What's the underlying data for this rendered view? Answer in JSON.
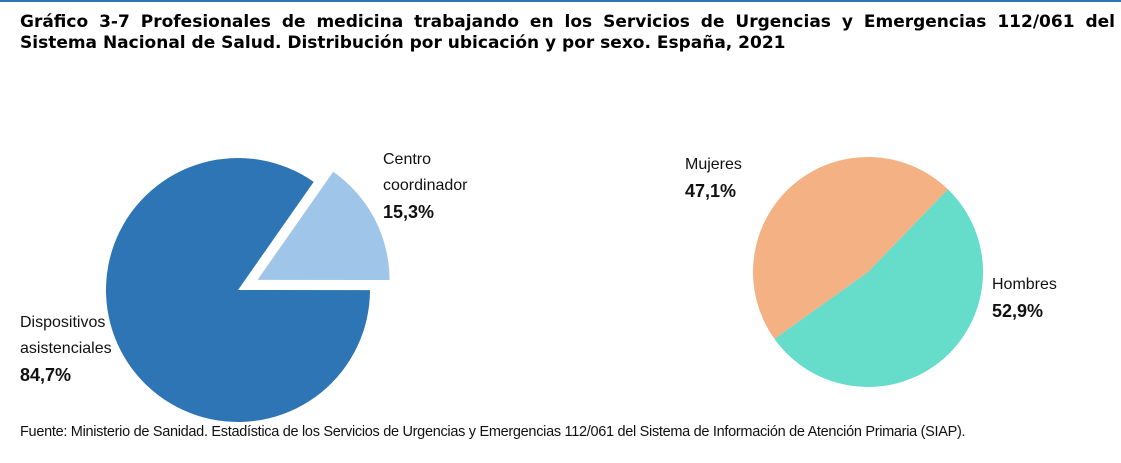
{
  "title": "Gráfico 3-7 Profesionales de medicina trabajando en los Servicios de Urgencias y Emergencias 112/061 del Sistema Nacional de Salud. Distribución por ubicación y por sexo. España, 2021",
  "source": "Fuente: Ministerio de Sanidad. Estadística de los Servicios de Urgencias y Emergencias 112/061 del Sistema de Información de Atención Primaria (SIAP).",
  "chart_data": [
    {
      "type": "pie",
      "categories": [
        "Centro coordinador",
        "Dispositivos asistenciales"
      ],
      "values": [
        15.3,
        84.7
      ],
      "value_labels": [
        "15,3%",
        "84,7%"
      ],
      "colors": [
        "#9fc5e8",
        "#2e75b6"
      ]
    },
    {
      "type": "pie",
      "categories": [
        "Hombres",
        "Mujeres"
      ],
      "values": [
        52.9,
        47.1
      ],
      "value_labels": [
        "52,9%",
        "47,1%"
      ],
      "colors": [
        "#66dccb",
        "#f4b183"
      ]
    }
  ]
}
